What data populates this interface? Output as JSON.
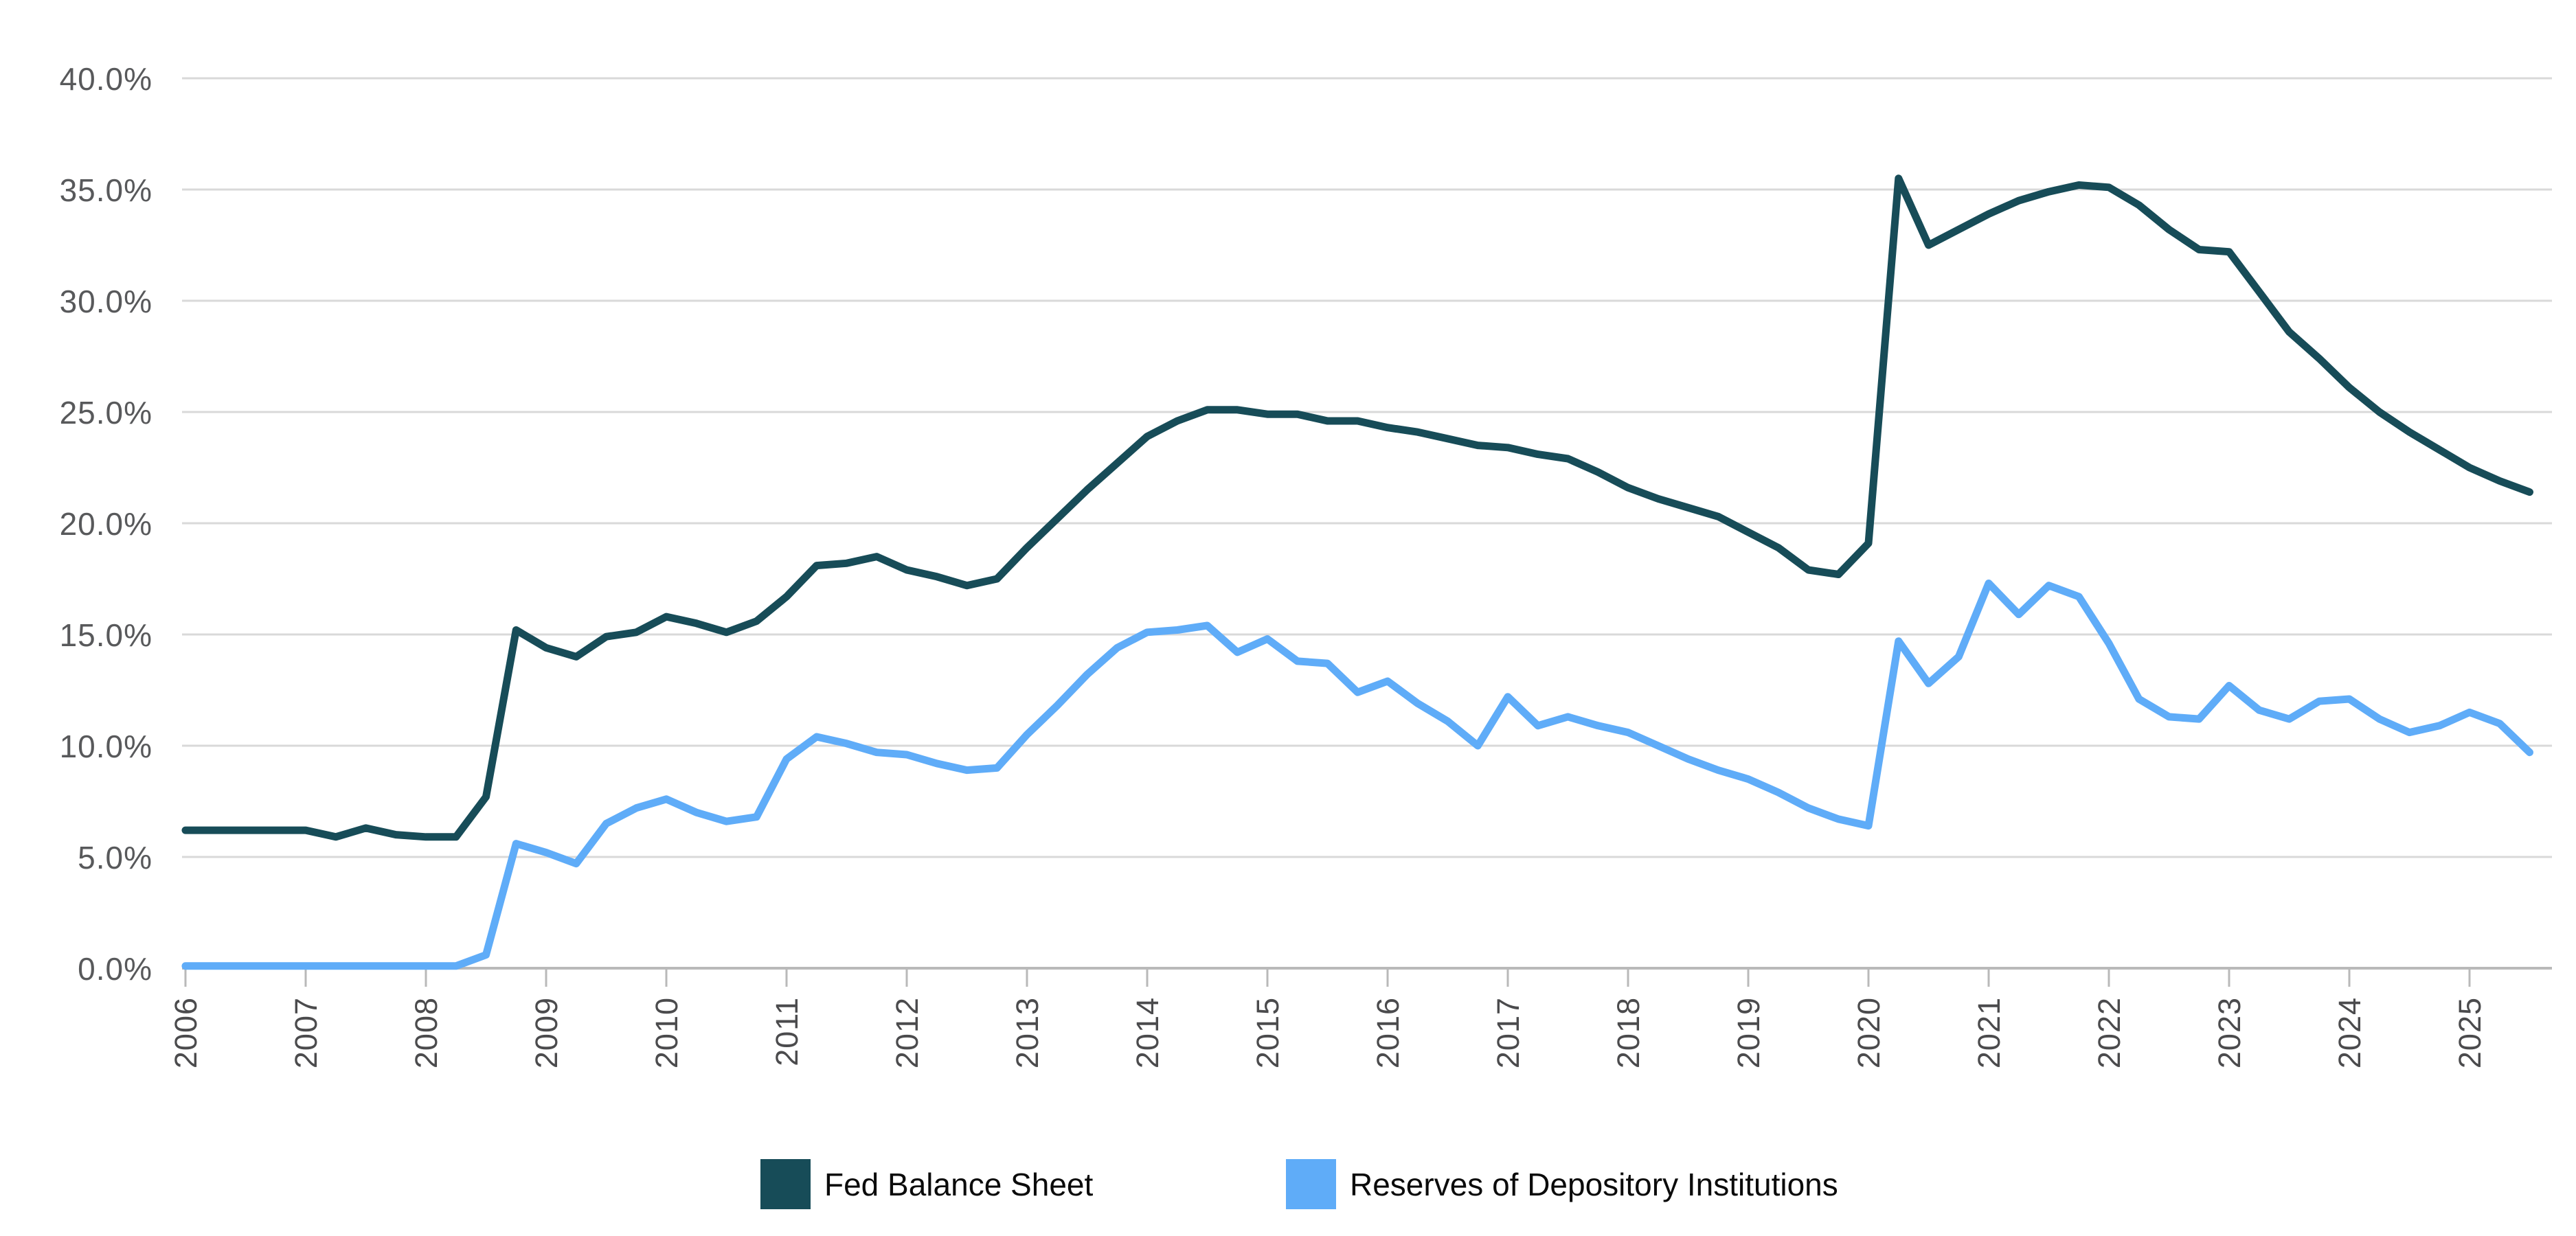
{
  "chart_data": {
    "type": "line",
    "title": "",
    "xlabel": "",
    "ylabel": "",
    "unit": "%",
    "grid": true,
    "legend_position": "bottom",
    "x_axis": {
      "start_year": 2006,
      "points_per_year": 4,
      "frequency": "quarterly",
      "last_point": "2025Q3",
      "tick_labels": [
        "2006",
        "2007",
        "2008",
        "2009",
        "2010",
        "2011",
        "2012",
        "2013",
        "2014",
        "2015",
        "2016",
        "2017",
        "2018",
        "2019",
        "2020",
        "2021",
        "2022",
        "2023",
        "2024",
        "2025"
      ]
    },
    "y_axis": {
      "min": 0,
      "max": 40,
      "tick_step": 5,
      "tick_labels": [
        "0.0%",
        "5.0%",
        "10.0%",
        "15.0%",
        "20.0%",
        "25.0%",
        "30.0%",
        "35.0%",
        "40.0%"
      ]
    },
    "series": [
      {
        "name": "Fed Balance Sheet",
        "color": "#174C58",
        "values": [
          6.2,
          6.2,
          6.2,
          6.2,
          6.2,
          5.9,
          6.3,
          6.0,
          5.9,
          5.9,
          7.7,
          15.2,
          14.4,
          14.0,
          14.9,
          15.1,
          15.8,
          15.5,
          15.1,
          15.6,
          16.7,
          18.1,
          18.2,
          18.5,
          17.9,
          17.6,
          17.2,
          17.5,
          18.9,
          20.2,
          21.5,
          22.7,
          23.9,
          24.6,
          25.1,
          25.1,
          24.9,
          24.9,
          24.6,
          24.6,
          24.3,
          24.1,
          23.8,
          23.5,
          23.4,
          23.1,
          22.9,
          22.3,
          21.6,
          21.1,
          20.7,
          20.3,
          19.6,
          18.9,
          17.9,
          17.7,
          19.1,
          35.5,
          32.5,
          33.2,
          33.9,
          34.5,
          34.9,
          35.2,
          35.1,
          34.3,
          33.2,
          32.3,
          32.2,
          30.4,
          28.6,
          27.4,
          26.1,
          25.0,
          24.1,
          23.3,
          22.5,
          21.9,
          21.4
        ]
      },
      {
        "name": "Reserves of Depository Institutions",
        "color": "#5FACF8",
        "values": [
          0.1,
          0.1,
          0.1,
          0.1,
          0.1,
          0.1,
          0.1,
          0.1,
          0.1,
          0.1,
          0.6,
          5.6,
          5.2,
          4.7,
          6.5,
          7.2,
          7.6,
          7.0,
          6.6,
          6.8,
          9.4,
          10.4,
          10.1,
          9.7,
          9.6,
          9.2,
          8.9,
          9.0,
          10.5,
          11.8,
          13.2,
          14.4,
          15.1,
          15.2,
          15.4,
          14.2,
          14.8,
          13.8,
          13.7,
          12.4,
          12.9,
          11.9,
          11.1,
          10.0,
          12.2,
          10.9,
          11.3,
          10.9,
          10.6,
          10.0,
          9.4,
          8.9,
          8.5,
          7.9,
          7.2,
          6.7,
          6.4,
          14.7,
          12.8,
          14.0,
          17.3,
          15.9,
          17.2,
          16.7,
          14.6,
          12.1,
          11.3,
          11.2,
          12.7,
          11.6,
          11.2,
          12.0,
          12.1,
          11.2,
          10.6,
          10.9,
          11.5,
          11.0,
          9.7
        ]
      }
    ],
    "style": {
      "grid_color": "#D9D9D9",
      "axis_color": "#B9B9B9",
      "background": "#FFFFFF",
      "line_width": 11
    }
  },
  "legend": {
    "items": [
      {
        "label": "Fed Balance Sheet",
        "color": "#174C58"
      },
      {
        "label": "Reserves of Depository Institutions",
        "color": "#5FACF8"
      }
    ]
  }
}
